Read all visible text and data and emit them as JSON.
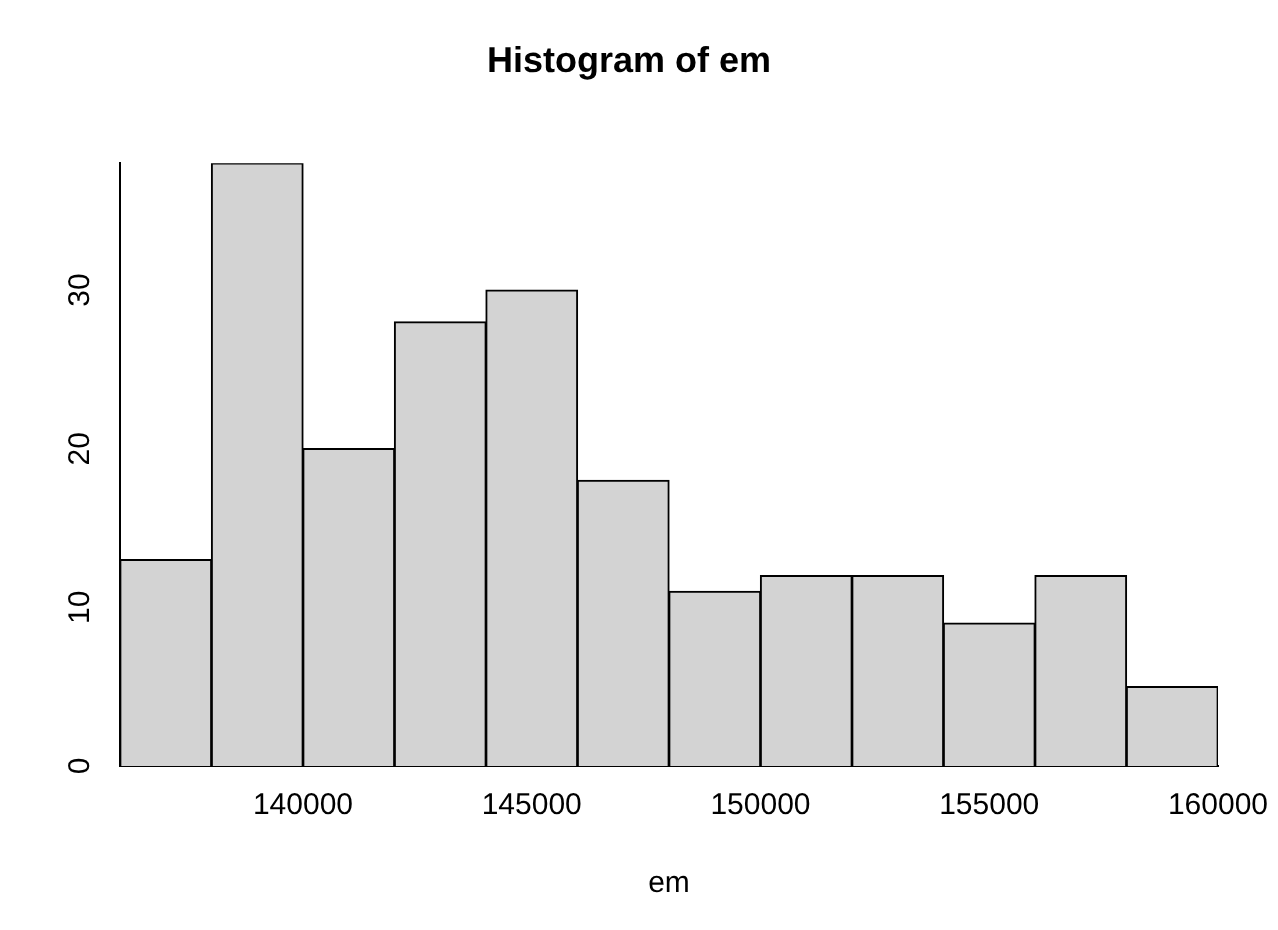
{
  "chart_data": {
    "type": "histogram",
    "title": "Histogram of em",
    "xlabel": "em",
    "bins": [
      136000,
      138000,
      140000,
      142000,
      144000,
      146000,
      148000,
      150000,
      152000,
      154000,
      156000,
      158000,
      160000
    ],
    "values": [
      13,
      38,
      20,
      28,
      30,
      18,
      11,
      12,
      12,
      9,
      12,
      5
    ],
    "color": "#d3d3d3",
    "xlim": [
      136000,
      160000
    ],
    "xticks": [
      140000,
      145000,
      150000,
      155000,
      160000
    ],
    "ylim": [
      0,
      38
    ],
    "yticks": [
      0,
      10,
      20,
      30
    ]
  }
}
